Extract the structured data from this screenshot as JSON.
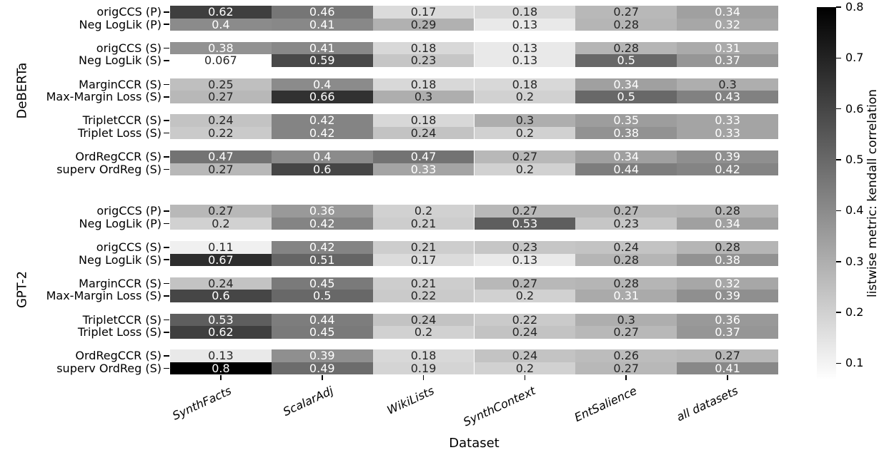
{
  "chart_data": {
    "type": "heatmap",
    "title": "",
    "xlabel": "Dataset",
    "ylabel": "",
    "colorbar_label": "listwise metric: kendall correlation",
    "colormap": "gray_r_linear",
    "vmin": 0.067,
    "vmax": 0.8,
    "colorbar_ticks": [
      0.8,
      0.7,
      0.6,
      0.5,
      0.4,
      0.3,
      0.2,
      0.1
    ],
    "columns": [
      "SynthFacts",
      "ScalarAdj",
      "WikiLists",
      "SynthContext",
      "EntSalience",
      "all datasets"
    ],
    "groups": [
      {
        "label": "DeBERTa",
        "pairs": [
          [
            {
              "label": "origCCS (P)",
              "values": [
                0.62,
                0.46,
                0.17,
                0.18,
                0.27,
                0.34
              ]
            },
            {
              "label": "Neg LogLik (P)",
              "values": [
                0.4,
                0.41,
                0.29,
                0.13,
                0.28,
                0.32
              ]
            }
          ],
          [
            {
              "label": "origCCS (S)",
              "values": [
                0.38,
                0.41,
                0.18,
                0.13,
                0.28,
                0.31
              ]
            },
            {
              "label": "Neg LogLik (S)",
              "values": [
                0.067,
                0.59,
                0.23,
                0.13,
                0.5,
                0.37
              ]
            }
          ],
          [
            {
              "label": "MarginCCR (S)",
              "values": [
                0.25,
                0.4,
                0.18,
                0.18,
                0.34,
                0.3
              ]
            },
            {
              "label": "Max-Margin Loss (S)",
              "values": [
                0.27,
                0.66,
                0.3,
                0.2,
                0.5,
                0.43
              ]
            }
          ],
          [
            {
              "label": "TripletCCR (S)",
              "values": [
                0.24,
                0.42,
                0.18,
                0.3,
                0.35,
                0.33
              ]
            },
            {
              "label": "Triplet Loss (S)",
              "values": [
                0.22,
                0.42,
                0.24,
                0.2,
                0.38,
                0.33
              ]
            }
          ],
          [
            {
              "label": "OrdRegCCR (S)",
              "values": [
                0.47,
                0.4,
                0.47,
                0.27,
                0.34,
                0.39
              ]
            },
            {
              "label": "superv OrdReg (S)",
              "values": [
                0.27,
                0.6,
                0.33,
                0.2,
                0.44,
                0.42
              ]
            }
          ]
        ]
      },
      {
        "label": "GPT-2",
        "pairs": [
          [
            {
              "label": "origCCS (P)",
              "values": [
                0.27,
                0.36,
                0.2,
                0.27,
                0.27,
                0.28
              ]
            },
            {
              "label": "Neg LogLik (P)",
              "values": [
                0.2,
                0.42,
                0.21,
                0.53,
                0.23,
                0.34
              ]
            }
          ],
          [
            {
              "label": "origCCS (S)",
              "values": [
                0.11,
                0.42,
                0.21,
                0.23,
                0.24,
                0.28
              ]
            },
            {
              "label": "Neg LogLik (S)",
              "values": [
                0.67,
                0.51,
                0.17,
                0.13,
                0.28,
                0.38
              ]
            }
          ],
          [
            {
              "label": "MarginCCR (S)",
              "values": [
                0.24,
                0.45,
                0.21,
                0.27,
                0.28,
                0.32
              ]
            },
            {
              "label": "Max-Margin Loss (S)",
              "values": [
                0.6,
                0.5,
                0.22,
                0.2,
                0.31,
                0.39
              ]
            }
          ],
          [
            {
              "label": "TripletCCR (S)",
              "values": [
                0.53,
                0.44,
                0.24,
                0.22,
                0.3,
                0.36
              ]
            },
            {
              "label": "Triplet Loss (S)",
              "values": [
                0.62,
                0.45,
                0.2,
                0.24,
                0.27,
                0.37
              ]
            }
          ],
          [
            {
              "label": "OrdRegCCR (S)",
              "values": [
                0.13,
                0.39,
                0.18,
                0.24,
                0.26,
                0.27
              ]
            },
            {
              "label": "superv OrdReg (S)",
              "values": [
                0.8,
                0.49,
                0.19,
                0.2,
                0.27,
                0.41
              ]
            }
          ]
        ]
      }
    ],
    "annotation_text_colors": {
      "dark_cells": "#ffffff",
      "light_cells": "#262626"
    }
  }
}
